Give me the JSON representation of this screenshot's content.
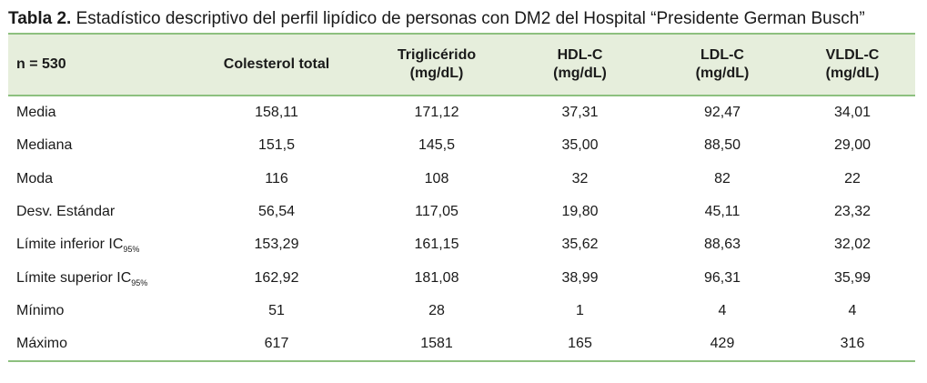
{
  "caption": {
    "label": "Tabla 2.",
    "text": " Estadístico descriptivo del perfil lipídico de personas con DM2 del Hospital “Presidente German Busch”"
  },
  "table": {
    "headers": [
      {
        "line1": "n = 530",
        "line2": ""
      },
      {
        "line1": "Colesterol total",
        "line2": ""
      },
      {
        "line1": "Triglicérido",
        "line2": "(mg/dL)"
      },
      {
        "line1": "HDL-C",
        "line2": "(mg/dL)"
      },
      {
        "line1": "LDL-C",
        "line2": "(mg/dL)"
      },
      {
        "line1": "VLDL-C",
        "line2": "(mg/dL)"
      }
    ],
    "rows": [
      {
        "label": "Media",
        "sub": "",
        "values": [
          "158,11",
          "171,12",
          "37,31",
          "92,47",
          "34,01"
        ]
      },
      {
        "label": "Mediana",
        "sub": "",
        "values": [
          "151,5",
          "145,5",
          "35,00",
          "88,50",
          "29,00"
        ]
      },
      {
        "label": "Moda",
        "sub": "",
        "values": [
          "116",
          "108",
          "32",
          "82",
          "22"
        ]
      },
      {
        "label": "Desv. Estándar",
        "sub": "",
        "values": [
          "56,54",
          "117,05",
          "19,80",
          "45,11",
          "23,32"
        ]
      },
      {
        "label": "Límite inferior IC",
        "sub": "95%",
        "values": [
          "153,29",
          "161,15",
          "35,62",
          "88,63",
          "32,02"
        ]
      },
      {
        "label": "Límite superior IC",
        "sub": "95%",
        "values": [
          "162,92",
          "181,08",
          "38,99",
          "96,31",
          "35,99"
        ]
      },
      {
        "label": "Mínimo",
        "sub": "",
        "values": [
          "51",
          "28",
          "1",
          "4",
          "4"
        ]
      },
      {
        "label": "Máximo",
        "sub": "",
        "values": [
          "617",
          "1581",
          "165",
          "429",
          "316"
        ]
      }
    ]
  }
}
